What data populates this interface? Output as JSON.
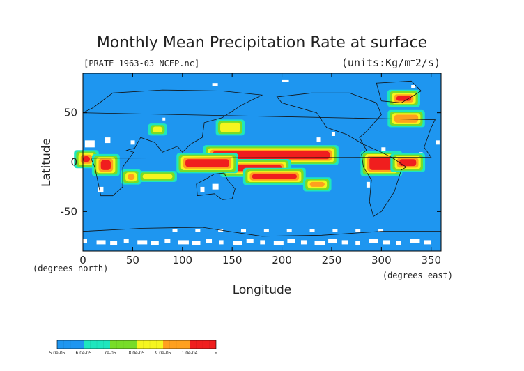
{
  "chart_data": {
    "type": "heatmap",
    "title": "Monthly Mean Precipitation Rate at surface",
    "subtitle": "[PRATE_1963-03_NCEP.nc]",
    "units": "(units:Kg/m^-2/s)",
    "xlabel": "Longitude",
    "ylabel": "Latitude",
    "x_unit_label": "(degrees_east)",
    "y_unit_label": "(degrees_north)",
    "xlim": [
      0,
      360
    ],
    "ylim": [
      -90,
      90
    ],
    "x_ticks": [
      "0",
      "50",
      "100",
      "150",
      "200",
      "250",
      "300",
      "350"
    ],
    "x_tick_values": [
      0,
      50,
      100,
      150,
      200,
      250,
      300,
      350
    ],
    "y_ticks": [
      "50",
      "0",
      "-50"
    ],
    "y_tick_values": [
      50,
      0,
      -50
    ],
    "colorbar": {
      "labels": [
        "5.0e-05",
        "6.0e-05",
        "7e-05",
        "8.0e-05",
        "9.0e-05",
        "1.0e-04",
        "∞"
      ],
      "colors": [
        "#1e96f0",
        "#1ee6be",
        "#78dc28",
        "#f5f51e",
        "#ffa01e",
        "#f01e1e"
      ]
    },
    "regions": [
      {
        "level": 5,
        "lon": [
          130,
          248
        ],
        "lat": [
          3,
          11
        ]
      },
      {
        "level": 5,
        "lon": [
          147,
          200
        ],
        "lat": [
          -9,
          -3
        ]
      },
      {
        "level": 5,
        "lon": [
          170,
          215
        ],
        "lat": [
          -17,
          -12
        ]
      },
      {
        "level": 4,
        "lon": [
          228,
          243
        ],
        "lat": [
          -25,
          -20
        ]
      },
      {
        "level": 5,
        "lon": [
          103,
          147
        ],
        "lat": [
          -5,
          3
        ]
      },
      {
        "level": 5,
        "lon": [
          288,
          312
        ],
        "lat": [
          -8,
          5
        ]
      },
      {
        "level": 5,
        "lon": [
          318,
          335
        ],
        "lat": [
          -4,
          3
        ]
      },
      {
        "level": 5,
        "lon": [
          0,
          7
        ],
        "lat": [
          0,
          6
        ]
      },
      {
        "level": 5,
        "lon": [
          18,
          28
        ],
        "lat": [
          -8,
          2
        ]
      },
      {
        "level": 4,
        "lon": [
          45,
          52
        ],
        "lat": [
          -18,
          -12
        ]
      },
      {
        "level": 5,
        "lon": [
          315,
          330
        ],
        "lat": [
          62,
          67
        ]
      },
      {
        "level": 4,
        "lon": [
          313,
          337
        ],
        "lat": [
          40,
          48
        ]
      },
      {
        "level": 3,
        "lon": [
          138,
          158
        ],
        "lat": [
          30,
          40
        ]
      },
      {
        "level": 3,
        "lon": [
          70,
          80
        ],
        "lat": [
          30,
          36
        ]
      },
      {
        "level": 3,
        "lon": [
          60,
          90
        ],
        "lat": [
          -17,
          -12
        ]
      }
    ]
  }
}
